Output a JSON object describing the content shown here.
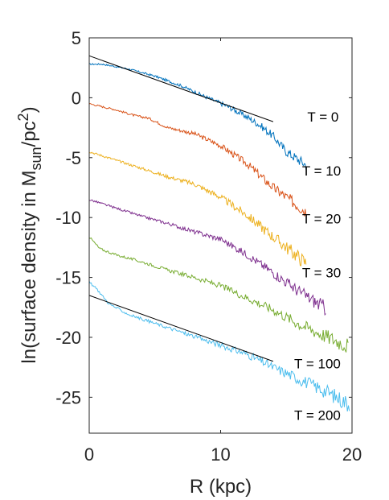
{
  "chart_data": {
    "type": "line",
    "title": "",
    "xlabel": "R (kpc)",
    "ylabel": {
      "part1": "ln(surface density in M",
      "sub": "sun",
      "part2": "/pc",
      "sup": "2",
      "part3": ")"
    },
    "xlim": [
      0,
      20
    ],
    "ylim": [
      -28,
      5
    ],
    "xticks": [
      0,
      10,
      20
    ],
    "yticks": [
      5,
      0,
      -5,
      -10,
      -15,
      -20,
      -25
    ],
    "grid": false,
    "legend": "none",
    "series": [
      {
        "color": "#0072BD",
        "label": "T = 0",
        "label_xy": [
          16.6,
          -2.0
        ],
        "noise": 0.25,
        "extent": [
          0,
          16.5
        ],
        "points": [
          [
            0,
            2.8
          ],
          [
            1,
            2.8
          ],
          [
            3,
            2.4
          ],
          [
            5,
            1.8
          ],
          [
            7,
            1.0
          ],
          [
            9,
            0.0
          ],
          [
            10.5,
            -0.7
          ],
          [
            12,
            -1.6
          ],
          [
            13,
            -2.3
          ],
          [
            14,
            -3.2
          ],
          [
            15,
            -4.5
          ],
          [
            16.5,
            -5.6
          ]
        ]
      },
      {
        "color": "#D95319",
        "label": "T = 10",
        "label_xy": [
          16.2,
          -6.5
        ],
        "noise": 0.3,
        "extent": [
          0,
          16.5
        ],
        "points": [
          [
            0,
            -0.5
          ],
          [
            2,
            -1.0
          ],
          [
            3.5,
            -1.5
          ],
          [
            4.5,
            -1.7
          ],
          [
            6,
            -2.5
          ],
          [
            8,
            -3.0
          ],
          [
            10,
            -4.0
          ],
          [
            12,
            -5.5
          ],
          [
            14,
            -7.5
          ],
          [
            16.5,
            -9.5
          ]
        ]
      },
      {
        "color": "#EDB120",
        "label": "T = 20",
        "label_xy": [
          16.2,
          -10.5
        ],
        "noise": 0.35,
        "extent": [
          0,
          16.5
        ],
        "points": [
          [
            0,
            -4.5
          ],
          [
            2,
            -5.2
          ],
          [
            4,
            -5.9
          ],
          [
            6,
            -6.6
          ],
          [
            8,
            -7.2
          ],
          [
            10,
            -8.3
          ],
          [
            12,
            -9.8
          ],
          [
            14,
            -11.6
          ],
          [
            16.5,
            -13.8
          ]
        ]
      },
      {
        "color": "#7E2F8E",
        "label": "T = 30",
        "label_xy": [
          16.2,
          -15.0
        ],
        "noise": 0.35,
        "extent": [
          0,
          18
        ],
        "points": [
          [
            0,
            -8.5
          ],
          [
            2,
            -9.2
          ],
          [
            4,
            -9.9
          ],
          [
            6,
            -10.5
          ],
          [
            8,
            -11.2
          ],
          [
            10,
            -11.8
          ],
          [
            12,
            -13.1
          ],
          [
            14,
            -14.6
          ],
          [
            16,
            -16.2
          ],
          [
            18,
            -17.6
          ]
        ]
      },
      {
        "color": "#77AC30",
        "label": "T = 100",
        "label_xy": [
          15.6,
          -22.6
        ],
        "noise": 0.4,
        "extent": [
          0,
          19.7
        ],
        "points": [
          [
            0,
            -11.6
          ],
          [
            0.8,
            -12.6
          ],
          [
            2,
            -13.1
          ],
          [
            4,
            -13.7
          ],
          [
            6,
            -14.4
          ],
          [
            8,
            -15.0
          ],
          [
            10,
            -15.7
          ],
          [
            12,
            -16.7
          ],
          [
            14,
            -17.7
          ],
          [
            16,
            -18.9
          ],
          [
            18,
            -19.9
          ],
          [
            19.7,
            -20.7
          ]
        ]
      },
      {
        "color": "#4DBEEE",
        "label": "T = 200",
        "label_xy": [
          15.6,
          -26.9
        ],
        "noise": 0.4,
        "extent": [
          0,
          19.8
        ],
        "points": [
          [
            0,
            -15.4
          ],
          [
            0.6,
            -16.0
          ],
          [
            1.5,
            -17.2
          ],
          [
            3,
            -18.1
          ],
          [
            6,
            -19.2
          ],
          [
            9,
            -20.3
          ],
          [
            12,
            -21.4
          ],
          [
            14,
            -22.5
          ],
          [
            16,
            -23.5
          ],
          [
            18,
            -24.5
          ],
          [
            19.8,
            -25.6
          ]
        ]
      }
    ],
    "fits": [
      {
        "color": "#000000",
        "from": [
          0,
          3.5
        ],
        "to": [
          14,
          -2.0
        ]
      },
      {
        "color": "#000000",
        "from": [
          0,
          -16.5
        ],
        "to": [
          14,
          -22.0
        ]
      }
    ]
  }
}
